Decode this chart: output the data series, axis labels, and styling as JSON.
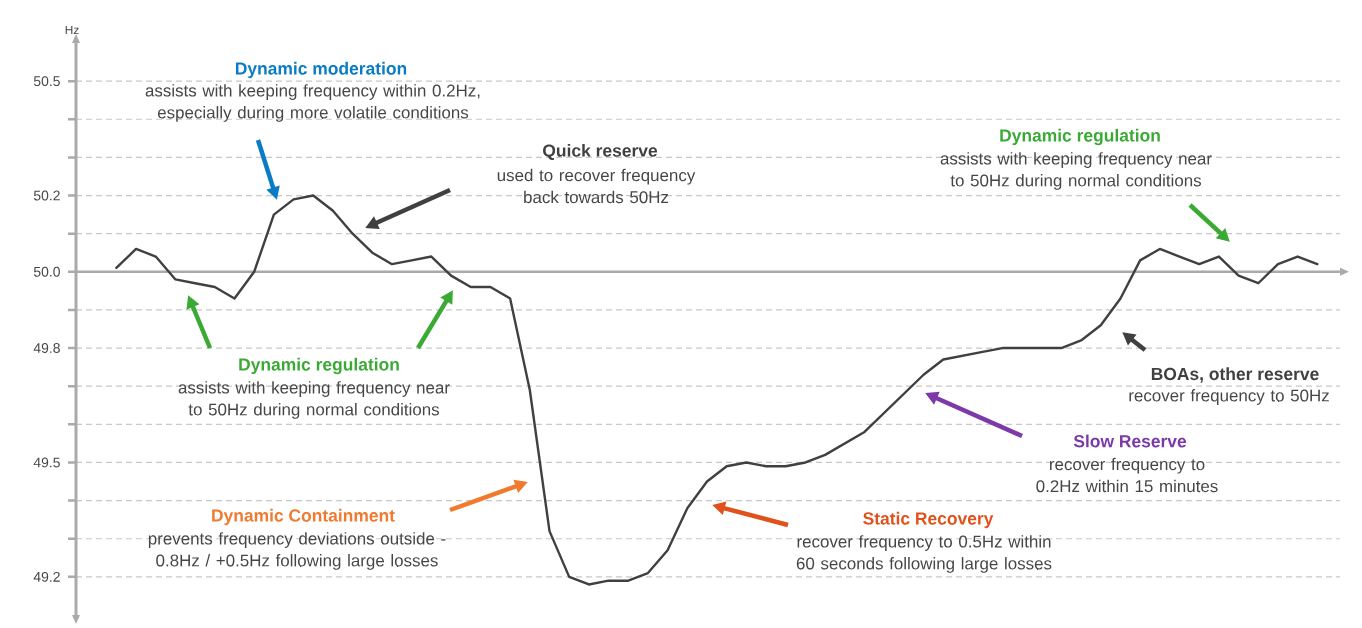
{
  "chart_data": {
    "type": "line",
    "ylabel": "Hz",
    "categories": [
      null,
      null,
      null,
      null,
      null,
      null,
      null,
      null,
      null,
      null,
      null,
      null,
      null,
      null,
      null,
      null,
      null,
      null,
      null,
      null,
      null,
      null,
      null,
      null,
      null,
      null,
      null,
      null,
      null,
      null,
      null,
      null,
      null,
      null,
      null,
      null,
      null,
      null,
      null,
      null,
      null,
      null,
      null,
      null,
      null,
      null,
      null,
      null,
      null,
      null,
      null,
      null,
      null,
      null,
      null,
      null,
      null,
      null,
      null,
      null,
      null,
      null
    ],
    "series": [
      {
        "color": "#404040",
        "values": [
          50.01,
          50.06,
          50.04,
          49.98,
          49.97,
          49.96,
          49.93,
          50.0,
          50.15,
          50.19,
          50.2,
          50.16,
          50.1,
          50.05,
          50.02,
          50.03,
          50.04,
          49.99,
          49.96,
          49.96,
          49.93,
          49.69,
          49.32,
          49.2,
          49.18,
          49.19,
          49.19,
          49.21,
          49.27,
          49.38,
          49.45,
          49.49,
          49.5,
          49.49,
          49.49,
          49.5,
          49.52,
          49.55,
          49.58,
          49.63,
          49.68,
          49.73,
          49.77,
          49.78,
          49.79,
          49.8,
          49.8,
          49.8,
          49.8,
          49.82,
          49.86,
          49.93,
          50.03,
          50.06,
          50.04,
          50.02,
          50.04,
          49.99,
          49.97,
          50.02,
          50.04,
          50.02
        ]
      }
    ],
    "ylim": [
      49.1,
      50.6
    ],
    "yticks": [
      49.2,
      {
        "value": 49.3,
        "label": null
      },
      {
        "value": 49.4,
        "label": null
      },
      49.5,
      {
        "value": 49.6,
        "label": null
      },
      {
        "value": 49.7,
        "label": null
      },
      49.8,
      {
        "value": 49.9,
        "label": null
      },
      {
        "value": 50,
        "label": "50.0"
      },
      {
        "value": 50.1,
        "label": null
      },
      50.2,
      {
        "value": 50.3,
        "label": null
      },
      {
        "value": 50.4,
        "label": null
      },
      50.5
    ],
    "tick_labels": "y",
    "grid": "y",
    "marker": "none",
    "line_style": "solid",
    "ref_lines": [
      {
        "axis": "y",
        "value": 50,
        "color": "#aaaaaa"
      }
    ],
    "annotations": [
      "Dynamic moderation",
      "assists with keeping frequency within 0.2Hz, especially during more volatile conditions",
      "Quick reserve",
      "used to recover frequency back towards 50Hz",
      "Dynamic regulation",
      "assists with keeping frequency near to 50Hz during normal conditions",
      "Dynamic regulation",
      "assists with keeping frequency near to 50Hz during normal conditions",
      "BOAs, other reserve",
      "recover frequency to 50Hz",
      "Slow Reserve",
      "recover frequency to 0.2Hz within 15 minutes",
      "Dynamic Containment",
      "prevents frequency deviations outside -0.8Hz / +0.5Hz following large losses",
      "Static Recovery",
      "recover frequency to 0.5Hz within 60 seconds following large losses"
    ]
  }
}
